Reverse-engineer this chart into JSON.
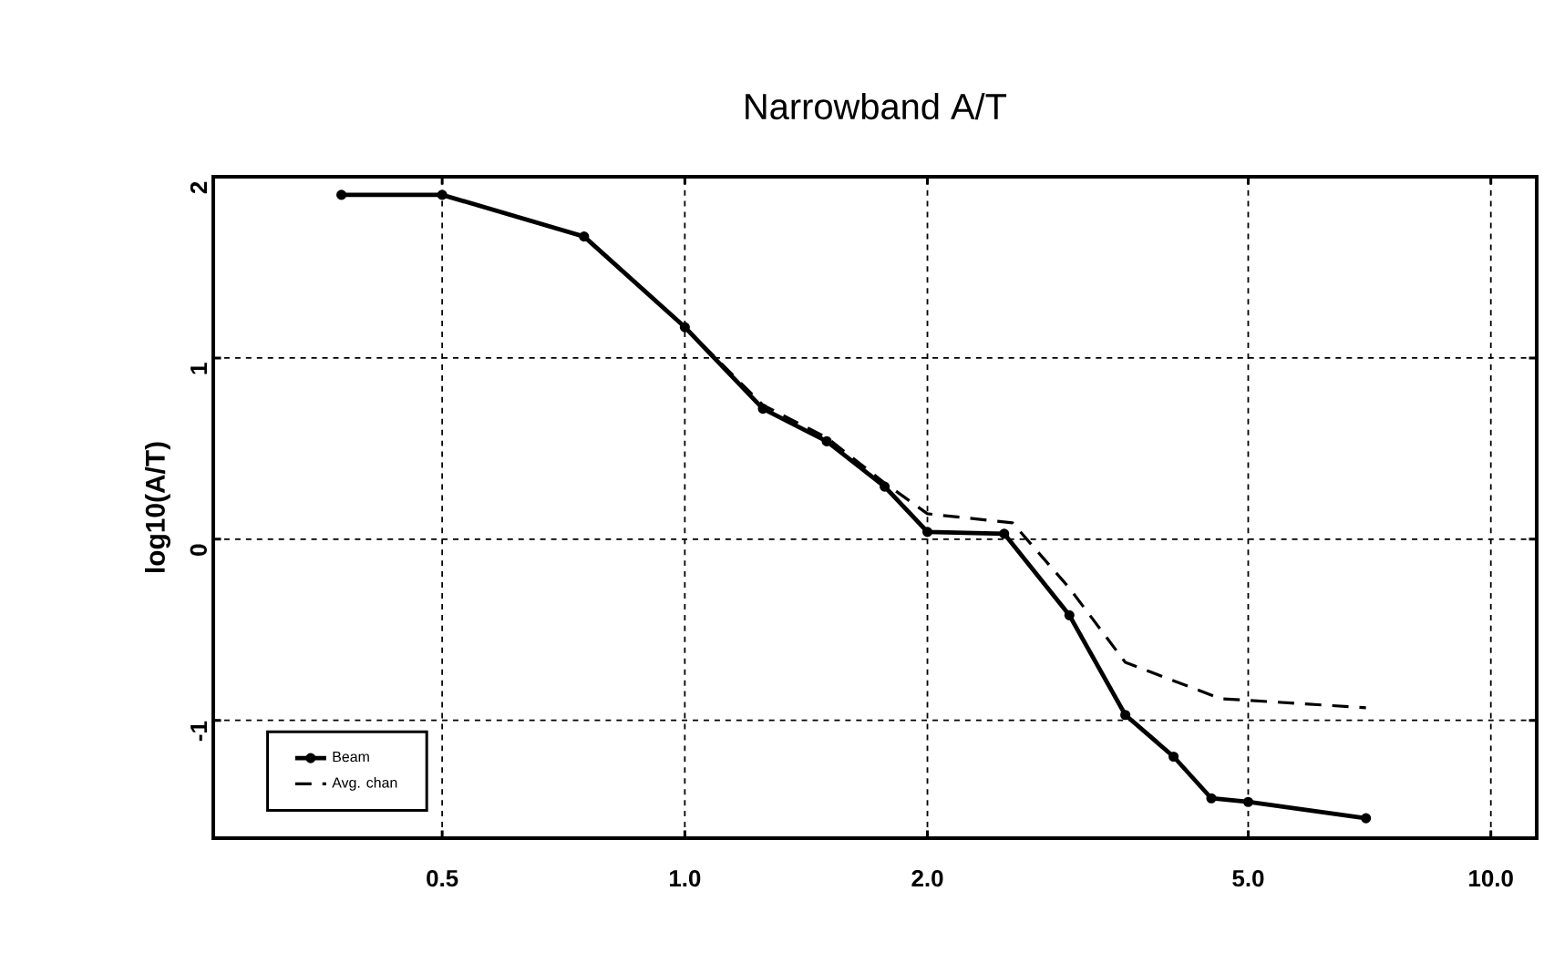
{
  "chart_data": {
    "type": "line",
    "title": "Narrowband A/T",
    "ylabel": "log10(A/T)",
    "log": "x",
    "xlim": [
      0.26,
      11.4
    ],
    "ylim": [
      -1.65,
      2.0
    ],
    "xticks": [
      0.5,
      {
        "value": 1,
        "label": "1.0"
      },
      {
        "value": 2,
        "label": "2.0"
      },
      {
        "value": 5,
        "label": "5.0"
      },
      {
        "value": 10,
        "label": "10.0"
      }
    ],
    "yticks": [
      -1,
      0,
      1,
      2
    ],
    "grid": true,
    "legend": "bottom left",
    "series": [
      {
        "name": "Beam",
        "color": "#000000",
        "line_style": "solid",
        "marker": "circle",
        "x": [
          0.375,
          0.5,
          0.75,
          1.0,
          1.25,
          1.5,
          1.77,
          2.0,
          2.49,
          3.0,
          3.52,
          4.04,
          4.5,
          5.0,
          7.0
        ],
        "values": [
          1.9,
          1.9,
          1.67,
          1.17,
          0.72,
          0.54,
          0.29,
          0.04,
          0.03,
          -0.42,
          -0.97,
          -1.2,
          -1.43,
          -1.45,
          -1.54
        ]
      },
      {
        "name": "Avg. chan",
        "color": "#000000",
        "line_style": "dashed",
        "marker": "none",
        "x": [
          0.375,
          0.5,
          0.75,
          1.0,
          1.25,
          1.5,
          1.77,
          2.0,
          2.55,
          3.0,
          3.52,
          4.62,
          7.0
        ],
        "values": [
          1.9,
          1.9,
          1.67,
          1.17,
          0.74,
          0.56,
          0.31,
          0.14,
          0.09,
          -0.27,
          -0.68,
          -0.88,
          -0.93
        ]
      }
    ]
  }
}
